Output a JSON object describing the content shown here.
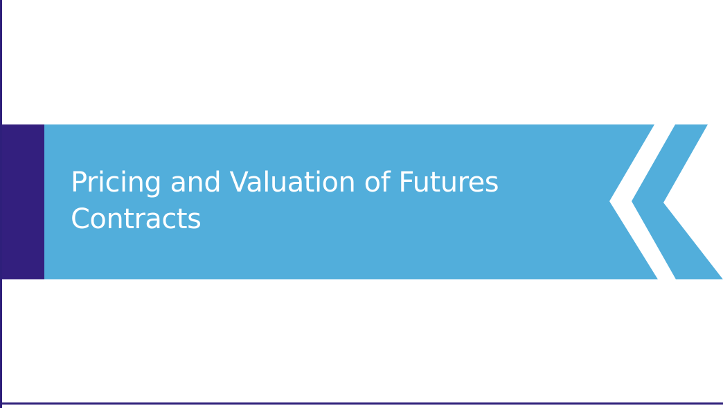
{
  "slide": {
    "title_line1": "Pricing and Valuation of Futures",
    "title_line2": "Contracts"
  },
  "colors": {
    "banner": "#52aedb",
    "accent_bar": "#331f7e",
    "frame": "#2e1f7a",
    "background": "#ffffff",
    "title_text": "#ffffff"
  }
}
